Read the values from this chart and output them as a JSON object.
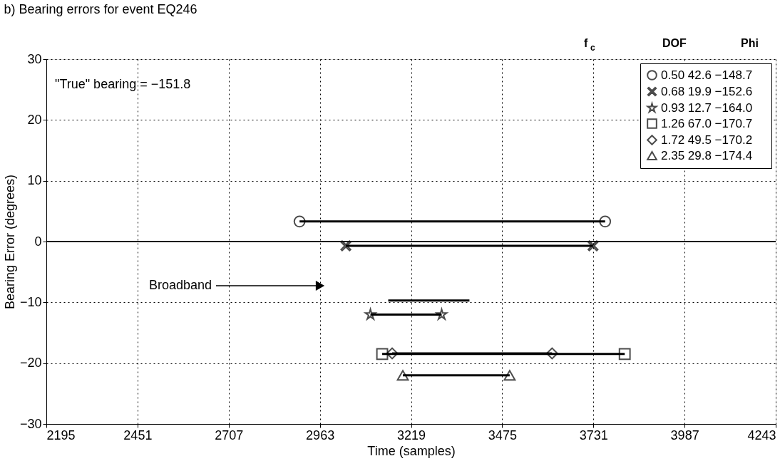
{
  "chart_data": {
    "type": "line",
    "title": "b) Bearing errors for event EQ246",
    "xlabel": "Time (samples)",
    "ylabel": "Bearing Error (degrees)",
    "legend_title": "f$_{c}$      DOF      Phi",
    "xlim": [
      2195,
      4243
    ],
    "xticks": [
      2195,
      2451,
      2707,
      2963,
      3219,
      3475,
      3731,
      3987,
      4243
    ],
    "ylim": [
      -30,
      30
    ],
    "yticks": [
      -30,
      -20,
      -10,
      0,
      10,
      20,
      30
    ],
    "grid": true,
    "legend": "top right",
    "series": [
      {
        "name": "0.50   42.6   −148.7",
        "color": "#000000",
        "marker": "circle",
        "x": [
          2906,
          3764
        ],
        "values": [
          3.3,
          3.3
        ]
      },
      {
        "name": "0.68   19.9   −152.6",
        "color": "#000000",
        "marker": "cross",
        "x": [
          3036,
          3730
        ],
        "values": [
          -0.7,
          -0.7
        ]
      },
      {
        "name": "0.93   12.7   −164.0",
        "color": "#000000",
        "marker": "star",
        "x": [
          3105,
          3305
        ],
        "values": [
          -12,
          -12
        ]
      },
      {
        "name": "1.26   67.0   −170.7",
        "color": "#000000",
        "marker": "square",
        "x": [
          3138,
          3819
        ],
        "values": [
          -18.5,
          -18.5
        ]
      },
      {
        "name": "1.72   49.5   −170.2",
        "color": "#000000",
        "marker": "diamond",
        "x": [
          3166,
          3615
        ],
        "values": [
          -18.4,
          -18.4
        ]
      },
      {
        "name": "2.35   29.8   −174.4",
        "color": "#000000",
        "marker": "triangle",
        "x": [
          3196,
          3496
        ],
        "values": [
          -22,
          -22
        ]
      },
      {
        "color": "#000000",
        "marker": "none",
        "x": [
          3155,
          3383
        ],
        "values": [
          -9.7,
          -9.7
        ]
      }
    ],
    "ref_lines": [
      {
        "axis": "y",
        "value": 0,
        "line_style": "solid",
        "color": "#000000"
      }
    ],
    "annotations": [
      "\"True\" bearing = −151.8",
      "Broadband"
    ]
  }
}
